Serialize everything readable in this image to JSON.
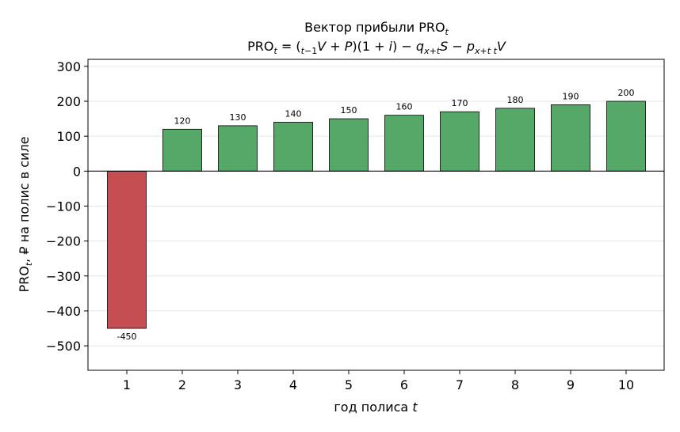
{
  "chart_data": {
    "type": "bar",
    "title_line1": "Вектор прибыли PRO",
    "title_line1_sub": "t",
    "title_line2": "PRO_t = (_{t−1}V + P)(1 + i) − q_{x+t}S − p_{x+t t}V",
    "xlabel": "год полиса",
    "xlabel_var": "t",
    "ylabel": "PRO_t, ₽ на полис в силе",
    "categories": [
      "1",
      "2",
      "3",
      "4",
      "5",
      "6",
      "7",
      "8",
      "9",
      "10"
    ],
    "values": [
      -450,
      120,
      130,
      140,
      150,
      160,
      170,
      180,
      190,
      200
    ],
    "data_labels": [
      "-450",
      "120",
      "130",
      "140",
      "150",
      "160",
      "170",
      "180",
      "190",
      "200"
    ],
    "ylim": [
      -570,
      320
    ],
    "yticks": [
      300,
      200,
      100,
      0,
      -100,
      -200,
      -300,
      -400,
      -500
    ],
    "ytick_labels": [
      "300",
      "200",
      "100",
      "0",
      "−100",
      "−200",
      "−300",
      "−400",
      "−500"
    ],
    "grid": "horizontal",
    "colors": {
      "positive": "#55a868",
      "negative": "#c44e52",
      "edge": "#000000",
      "grid": "#e6e6e6"
    }
  }
}
